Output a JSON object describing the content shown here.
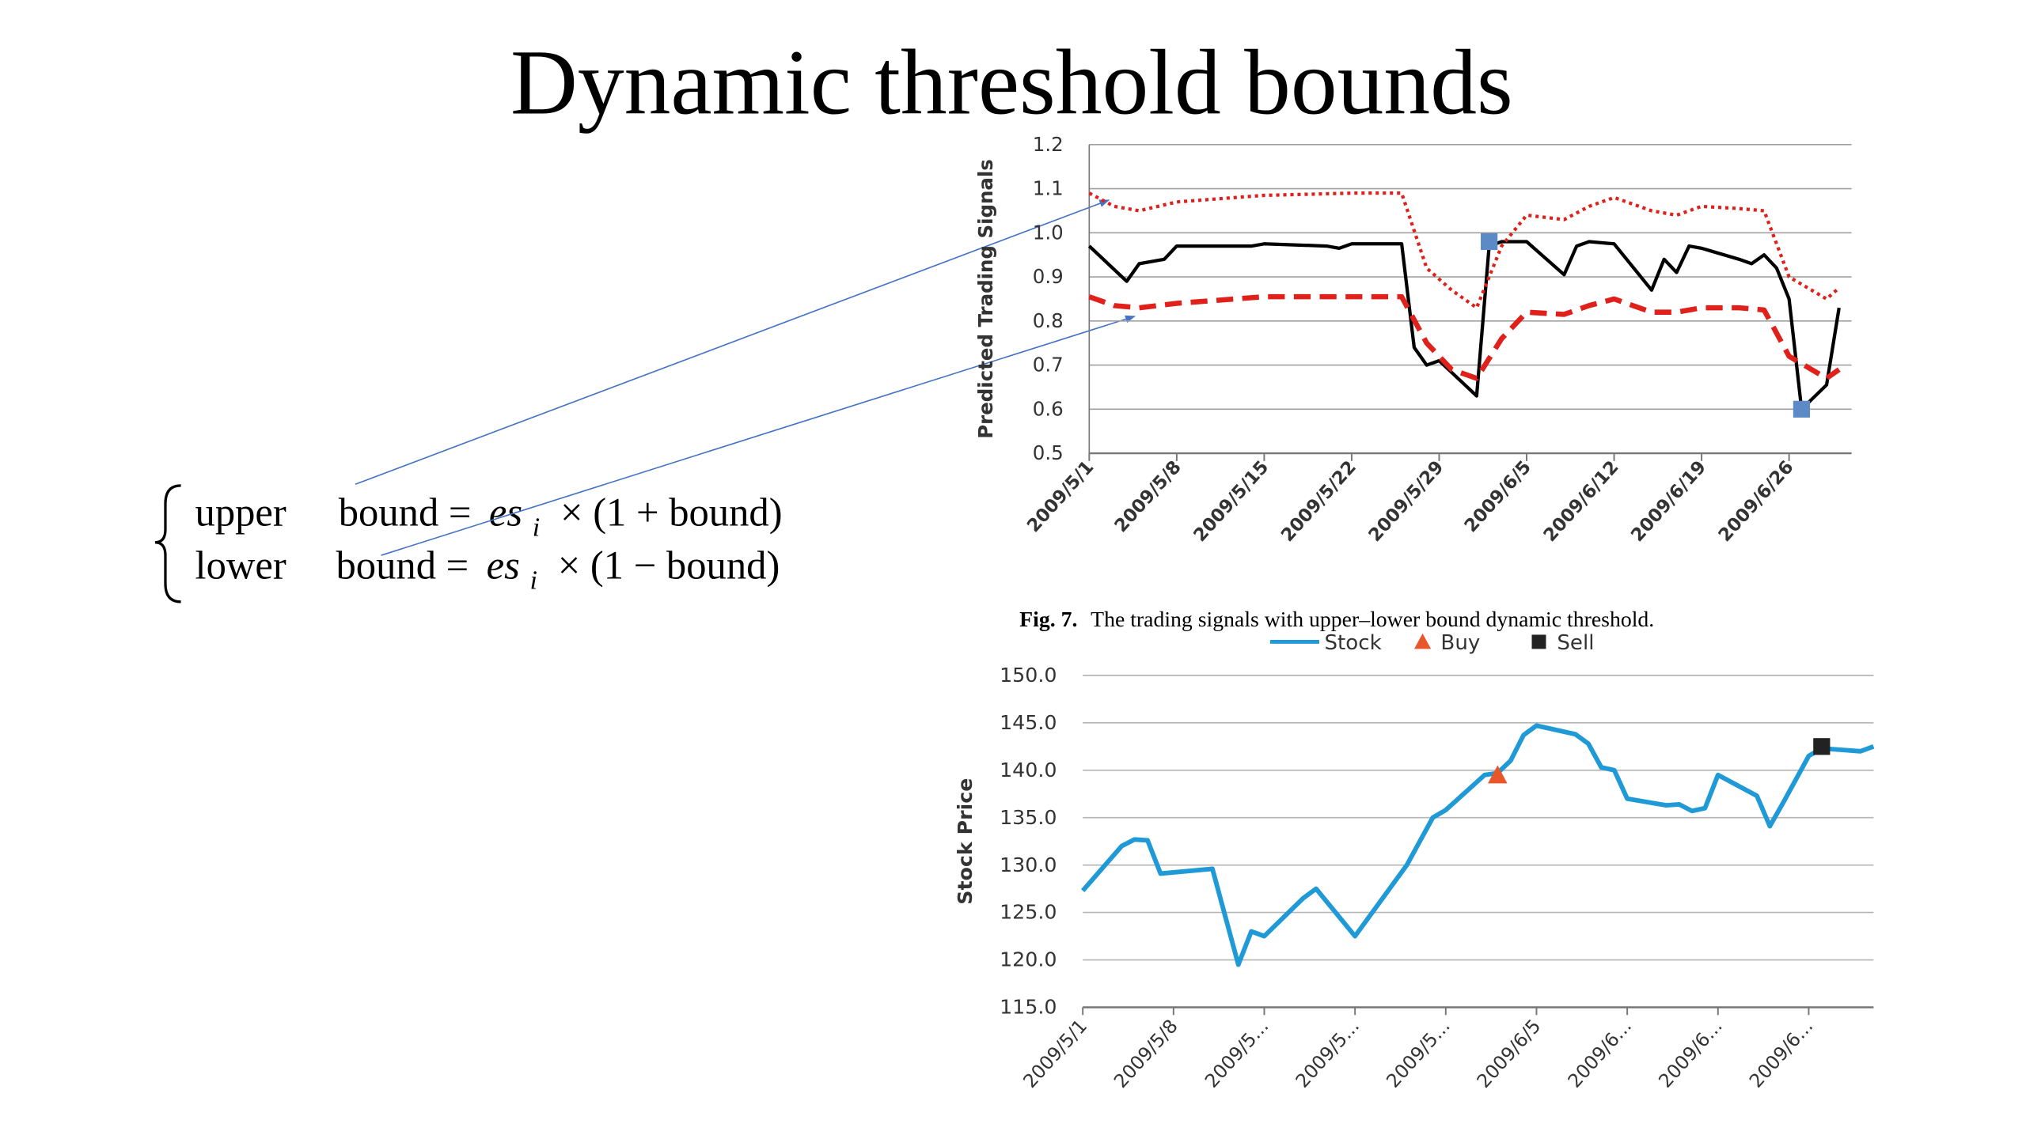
{
  "slide": {
    "title": "Dynamic threshold bounds",
    "formula": [
      {
        "label": "upper",
        "lhs": "bound =",
        "var": "es",
        "sub": "i",
        "rhs": "× (1 + bound)"
      },
      {
        "label": "lower",
        "lhs": "bound =",
        "var": "es",
        "sub": "i",
        "rhs": "× (1 − bound)"
      }
    ],
    "caption": {
      "label": "Fig. 7.",
      "text": "The trading signals with upper–lower bound dynamic threshold."
    }
  },
  "chart_data": [
    {
      "type": "line",
      "y_label": "Predicted Trading Signals",
      "grid": true,
      "xlim": [
        "2009/5/1",
        "2009/7/1"
      ],
      "xticks": [
        "2009/5/1",
        "2009/5/8",
        "2009/5/15",
        "2009/5/22",
        "2009/5/29",
        "2009/6/5",
        "2009/6/12",
        "2009/6/19",
        "2009/6/26"
      ],
      "ylim": [
        0.5,
        1.2
      ],
      "yticks": [
        0.5,
        0.6,
        0.7,
        0.8,
        0.9,
        {
          "value": 1,
          "label": "1.0"
        },
        1.1,
        1.2
      ],
      "series": [
        {
          "color": "#000000",
          "style": "solid",
          "x": [
            "2009/5/1",
            "2009/5/4",
            "2009/5/5",
            "2009/5/7",
            "2009/5/8",
            "2009/5/14",
            "2009/5/15",
            "2009/5/20",
            "2009/5/21",
            "2009/5/22",
            "2009/5/26",
            "2009/5/27",
            "2009/5/28",
            "2009/5/29",
            "2009/6/1",
            "2009/6/2",
            "2009/6/3",
            "2009/6/5",
            "2009/6/8",
            "2009/6/9",
            "2009/6/10",
            "2009/6/12",
            "2009/6/15",
            "2009/6/16",
            "2009/6/17",
            "2009/6/18",
            "2009/6/19",
            "2009/6/22",
            "2009/6/23",
            "2009/6/24",
            "2009/6/25",
            "2009/6/26",
            "2009/6/27",
            "2009/6/29",
            "2009/6/30"
          ],
          "values": [
            0.97,
            0.89,
            0.93,
            0.94,
            0.97,
            0.97,
            0.975,
            0.97,
            0.965,
            0.975,
            0.975,
            0.74,
            0.7,
            0.71,
            0.63,
            0.97,
            0.98,
            0.98,
            0.905,
            0.97,
            0.98,
            0.975,
            0.87,
            0.94,
            0.91,
            0.97,
            0.965,
            0.94,
            0.93,
            0.95,
            0.92,
            0.85,
            0.6,
            0.655,
            0.83
          ]
        },
        {
          "color": "#e0201b",
          "style": "dotted",
          "x": [
            "2009/5/1",
            "2009/5/3",
            "2009/5/5",
            "2009/5/8",
            "2009/5/15",
            "2009/5/22",
            "2009/5/26",
            "2009/5/28",
            "2009/5/30",
            "2009/6/1",
            "2009/6/3",
            "2009/6/5",
            "2009/6/8",
            "2009/6/10",
            "2009/6/12",
            "2009/6/15",
            "2009/6/17",
            "2009/6/19",
            "2009/6/22",
            "2009/6/24",
            "2009/6/26",
            "2009/6/29",
            "2009/6/30"
          ],
          "values": [
            1.09,
            1.06,
            1.05,
            1.07,
            1.085,
            1.09,
            1.09,
            0.92,
            0.87,
            0.83,
            0.97,
            1.04,
            1.03,
            1.06,
            1.08,
            1.05,
            1.04,
            1.06,
            1.055,
            1.05,
            0.9,
            0.85,
            0.875
          ]
        },
        {
          "color": "#e0201b",
          "style": "dashed",
          "x": [
            "2009/5/1",
            "2009/5/3",
            "2009/5/5",
            "2009/5/8",
            "2009/5/15",
            "2009/5/22",
            "2009/5/26",
            "2009/5/28",
            "2009/5/30",
            "2009/6/1",
            "2009/6/3",
            "2009/6/5",
            "2009/6/8",
            "2009/6/10",
            "2009/6/12",
            "2009/6/15",
            "2009/6/17",
            "2009/6/19",
            "2009/6/22",
            "2009/6/24",
            "2009/6/26",
            "2009/6/29",
            "2009/6/30"
          ],
          "values": [
            0.855,
            0.835,
            0.83,
            0.84,
            0.855,
            0.855,
            0.855,
            0.75,
            0.69,
            0.67,
            0.76,
            0.82,
            0.815,
            0.835,
            0.85,
            0.82,
            0.82,
            0.83,
            0.83,
            0.825,
            0.72,
            0.67,
            0.69
          ]
        },
        {
          "color": "#5b8ac6",
          "marker": "square",
          "x": [
            "2009/6/2",
            "2009/6/27"
          ],
          "values": [
            0.98,
            0.6
          ]
        }
      ]
    },
    {
      "type": "line",
      "y_label": "Stock Price",
      "grid": true,
      "legend": "top",
      "xlim": [
        "2009/5/1",
        "2009/7/1"
      ],
      "xticks": [
        "2009/5/1",
        "2009/5/8",
        {
          "value": "2009/5/15",
          "label": "2009/5..."
        },
        {
          "value": "2009/5/22",
          "label": "2009/5..."
        },
        {
          "value": "2009/5/29",
          "label": "2009/5..."
        },
        "2009/6/5",
        {
          "value": "2009/6/12",
          "label": "2009/6..."
        },
        {
          "value": "2009/6/19",
          "label": "2009/6..."
        },
        {
          "value": "2009/6/26",
          "label": "2009/6..."
        }
      ],
      "ylim": [
        115,
        150
      ],
      "yticks": [
        {
          "value": 115,
          "label": "115.0"
        },
        {
          "value": 120,
          "label": "120.0"
        },
        {
          "value": 125,
          "label": "125.0"
        },
        {
          "value": 130,
          "label": "130.0"
        },
        {
          "value": 135,
          "label": "135.0"
        },
        {
          "value": 140,
          "label": "140.0"
        },
        {
          "value": 145,
          "label": "145.0"
        },
        {
          "value": 150,
          "label": "150.0"
        }
      ],
      "series": [
        {
          "name": "Stock",
          "color": "#1f9ad6",
          "style": "solid",
          "x": [
            "2009/5/1",
            "2009/5/4",
            "2009/5/5",
            "2009/5/6",
            "2009/5/7",
            "2009/5/11",
            "2009/5/13",
            "2009/5/14",
            "2009/5/15",
            "2009/5/18",
            "2009/5/19",
            "2009/5/22",
            "2009/5/26",
            "2009/5/28",
            "2009/5/29",
            "2009/6/1",
            "2009/6/2",
            "2009/6/3",
            "2009/6/4",
            "2009/6/5",
            "2009/6/8",
            "2009/6/9",
            "2009/6/10",
            "2009/6/11",
            "2009/6/12",
            "2009/6/15",
            "2009/6/16",
            "2009/6/17",
            "2009/6/18",
            "2009/6/19",
            "2009/6/22",
            "2009/6/23",
            "2009/6/24",
            "2009/6/26",
            "2009/6/27",
            "2009/6/28",
            "2009/6/30",
            "2009/7/1"
          ],
          "values": [
            127.3,
            132.0,
            132.7,
            132.6,
            129.1,
            129.6,
            119.5,
            123.0,
            122.5,
            126.5,
            127.5,
            122.5,
            130.0,
            135.0,
            135.8,
            139.5,
            139.7,
            141.0,
            143.7,
            144.7,
            143.8,
            142.8,
            140.3,
            140.0,
            137.0,
            136.3,
            136.4,
            135.7,
            136.0,
            139.5,
            137.3,
            134.1,
            136.5,
            141.5,
            142.3,
            142.2,
            142.0,
            142.5
          ]
        },
        {
          "name": "Buy",
          "color": "#e8562a",
          "marker": "triangle",
          "x": [
            "2009/6/2"
          ],
          "values": [
            139.5
          ]
        },
        {
          "name": "Sell",
          "color": "#222222",
          "marker": "square",
          "x": [
            "2009/6/27"
          ],
          "values": [
            142.5
          ]
        }
      ]
    }
  ]
}
